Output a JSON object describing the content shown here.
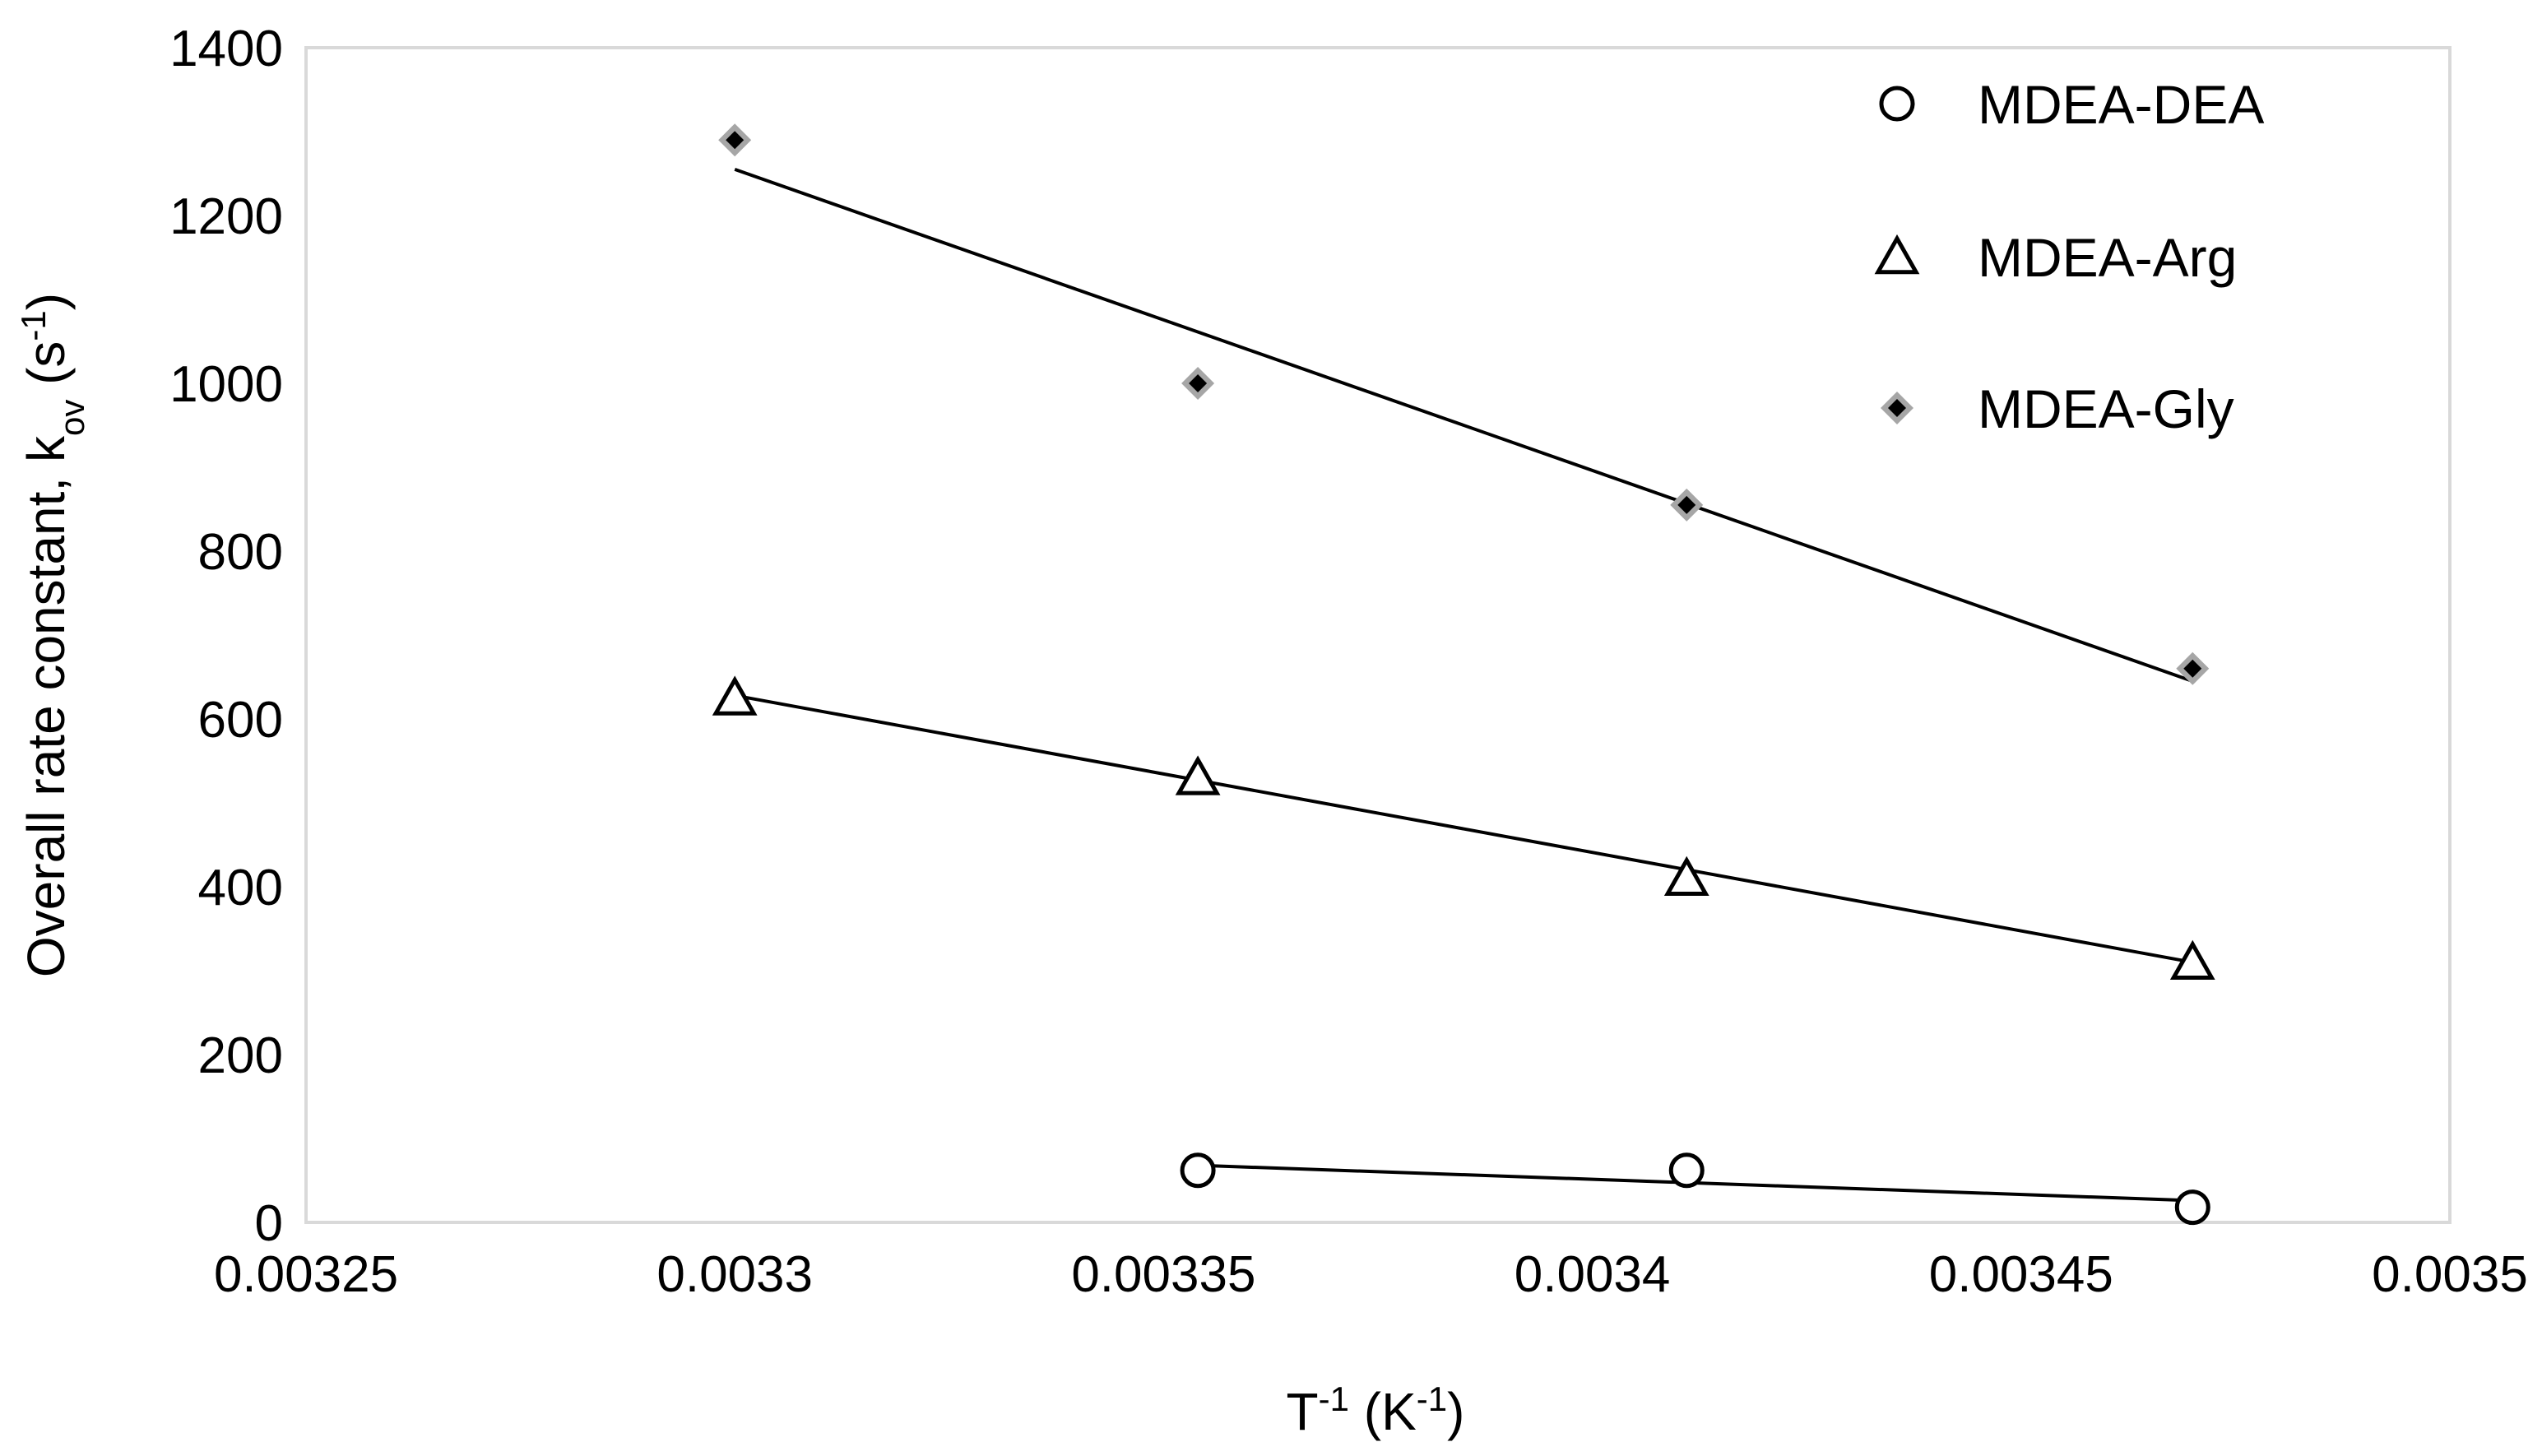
{
  "chart_data": {
    "type": "scatter",
    "title": "",
    "xlabel": {
      "base": "T",
      "sup1": "-1",
      "mid": " (K",
      "sup2": "-1",
      "end": ")"
    },
    "ylabel": {
      "base": "Overall rate constant, k",
      "sub": "ov",
      "mid": " (s",
      "sup": "-1",
      "end": ")"
    },
    "xlim": [
      0.00325,
      0.0035
    ],
    "ylim": [
      0,
      1400
    ],
    "x_ticks": [
      "0.00325",
      "0.0033",
      "0.00335",
      "0.0034",
      "0.00345",
      "0.0035"
    ],
    "y_ticks": [
      "0",
      "200",
      "400",
      "600",
      "800",
      "1000",
      "1200",
      "1400"
    ],
    "grid": false,
    "legend_position": "top-right",
    "series": [
      {
        "name": "MDEA-DEA",
        "marker": "circle",
        "x": [
          0.003354,
          0.003411,
          0.00347
        ],
        "y": [
          62,
          62,
          18
        ],
        "trendline": {
          "x": [
            0.003354,
            0.00347
          ],
          "y": [
            68,
            26
          ]
        }
      },
      {
        "name": "MDEA-Arg",
        "marker": "triangle",
        "x": [
          0.0033,
          0.003354,
          0.003411,
          0.00347
        ],
        "y": [
          625,
          530,
          410,
          310
        ],
        "trendline": {
          "x": [
            0.0033,
            0.00347
          ],
          "y": [
            628,
            310
          ]
        }
      },
      {
        "name": "MDEA-Gly",
        "marker": "diamond",
        "x": [
          0.0033,
          0.003354,
          0.003411,
          0.00347
        ],
        "y": [
          1290,
          1000,
          855,
          660
        ],
        "trendline": {
          "x": [
            0.0033,
            0.00347
          ],
          "y": [
            1255,
            645
          ]
        }
      }
    ],
    "colors": {
      "axis": "#d9d9d9",
      "line": "#000000",
      "diamond_outer": "#a6a6a6",
      "diamond_inner": "#000000"
    }
  }
}
